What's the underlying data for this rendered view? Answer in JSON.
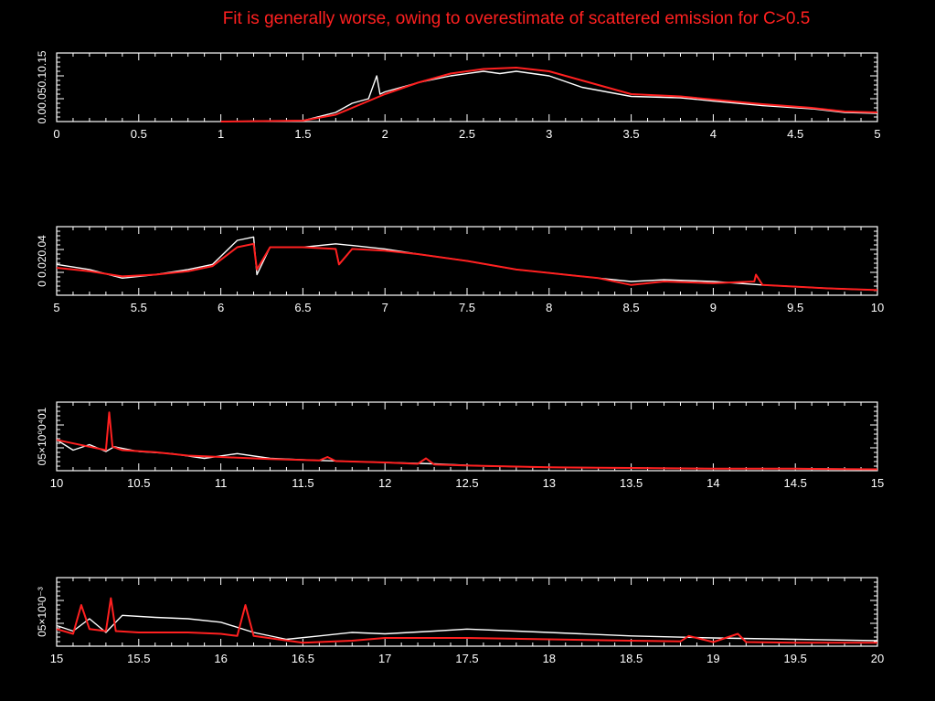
{
  "title": "Fit is generally worse, owing to overestimate of scattered emission for C>0.5",
  "colors": {
    "background": "#000000",
    "axes": "#ffffff",
    "data": "#ffffff",
    "model": "#ff2020",
    "title": "#ff2020"
  },
  "chart_data": [
    {
      "type": "line",
      "xlim": [
        0,
        5
      ],
      "ylim": [
        0,
        0.15
      ],
      "xticks": [
        "0",
        "0.5",
        "1",
        "1.5",
        "2",
        "2.5",
        "3",
        "3.5",
        "4",
        "4.5",
        "5"
      ],
      "yticks_label": "0.00.050.10.15",
      "series": [
        {
          "role": "data",
          "color": "#ffffff",
          "x": [
            1.0,
            1.5,
            1.7,
            1.8,
            1.9,
            1.95,
            1.97,
            2.0,
            2.2,
            2.4,
            2.6,
            2.7,
            2.8,
            3.0,
            3.2,
            3.5,
            3.8,
            4.0,
            4.3,
            4.6,
            4.8,
            5.0
          ],
          "y": [
            0.0,
            0.002,
            0.02,
            0.04,
            0.05,
            0.1,
            0.06,
            0.065,
            0.085,
            0.1,
            0.11,
            0.105,
            0.11,
            0.1,
            0.075,
            0.055,
            0.052,
            0.045,
            0.035,
            0.028,
            0.02,
            0.018
          ]
        },
        {
          "role": "model",
          "color": "#ff2020",
          "x": [
            1.0,
            1.5,
            1.7,
            1.8,
            2.0,
            2.2,
            2.4,
            2.6,
            2.8,
            3.0,
            3.2,
            3.5,
            3.8,
            4.0,
            4.3,
            4.6,
            4.8,
            5.0
          ],
          "y": [
            0.0,
            0.002,
            0.015,
            0.03,
            0.06,
            0.085,
            0.105,
            0.115,
            0.118,
            0.11,
            0.09,
            0.06,
            0.055,
            0.048,
            0.038,
            0.03,
            0.022,
            0.02
          ]
        }
      ]
    },
    {
      "type": "line",
      "xlim": [
        5,
        10
      ],
      "ylim": [
        0,
        0.04
      ],
      "xticks": [
        "5",
        "5.5",
        "6",
        "6.5",
        "7",
        "7.5",
        "8",
        "8.5",
        "9",
        "9.5",
        "10"
      ],
      "yticks_label": "0 0.020.04",
      "series": [
        {
          "role": "data",
          "color": "#ffffff",
          "x": [
            5.0,
            5.2,
            5.4,
            5.6,
            5.8,
            5.95,
            6.1,
            6.2,
            6.22,
            6.3,
            6.5,
            6.7,
            6.8,
            7.0,
            7.2,
            7.5,
            7.8,
            8.0,
            8.3,
            8.5,
            8.7,
            9.0,
            9.3,
            9.5,
            9.7,
            10.0
          ],
          "y": [
            0.018,
            0.015,
            0.01,
            0.012,
            0.015,
            0.018,
            0.032,
            0.034,
            0.012,
            0.028,
            0.028,
            0.03,
            0.029,
            0.027,
            0.024,
            0.02,
            0.015,
            0.013,
            0.01,
            0.008,
            0.009,
            0.008,
            0.006,
            0.005,
            0.004,
            0.003
          ]
        },
        {
          "role": "model",
          "color": "#ff2020",
          "x": [
            5.0,
            5.2,
            5.4,
            5.6,
            5.8,
            5.95,
            6.1,
            6.2,
            6.22,
            6.3,
            6.5,
            6.7,
            6.72,
            6.8,
            7.0,
            7.2,
            7.5,
            7.8,
            8.0,
            8.3,
            8.5,
            8.7,
            9.0,
            9.25,
            9.26,
            9.3,
            9.5,
            9.7,
            10.0
          ],
          "y": [
            0.016,
            0.014,
            0.011,
            0.012,
            0.014,
            0.017,
            0.028,
            0.03,
            0.015,
            0.028,
            0.028,
            0.027,
            0.018,
            0.027,
            0.026,
            0.024,
            0.02,
            0.015,
            0.013,
            0.01,
            0.006,
            0.008,
            0.007,
            0.008,
            0.012,
            0.006,
            0.005,
            0.004,
            0.003
          ]
        }
      ]
    },
    {
      "type": "line",
      "xlim": [
        10,
        15
      ],
      "ylim": [
        0,
        0.001
      ],
      "xticks": [
        "10",
        "10.5",
        "11",
        "11.5",
        "12",
        "12.5",
        "13",
        "13.5",
        "14",
        "14.5",
        "15"
      ],
      "yticks_label": "05×10⁰0⁴01",
      "series": [
        {
          "role": "data",
          "color": "#ffffff",
          "x": [
            10.0,
            10.1,
            10.2,
            10.3,
            10.35,
            10.5,
            10.7,
            10.9,
            11.1,
            11.3,
            11.6,
            12.0,
            12.3,
            12.6,
            13.0,
            13.5,
            14.0,
            14.5,
            15.0
          ],
          "y": [
            0.00045,
            0.0003,
            0.00038,
            0.00028,
            0.00035,
            0.00028,
            0.00025,
            0.00018,
            0.00025,
            0.00018,
            0.00015,
            0.00012,
            0.0001,
            7e-05,
            5e-05,
            4e-05,
            3e-05,
            3e-05,
            2e-05
          ]
        },
        {
          "role": "model",
          "color": "#ff2020",
          "x": [
            10.0,
            10.2,
            10.3,
            10.32,
            10.34,
            10.4,
            10.6,
            10.8,
            11.0,
            11.3,
            11.6,
            11.65,
            11.7,
            12.0,
            12.2,
            12.25,
            12.3,
            12.6,
            13.0,
            13.5,
            14.0,
            14.5,
            15.0
          ],
          "y": [
            0.00045,
            0.00035,
            0.0003,
            0.00085,
            0.00035,
            0.0003,
            0.00027,
            0.00022,
            0.0002,
            0.00017,
            0.00015,
            0.0002,
            0.00014,
            0.00012,
            0.0001,
            0.00018,
            9e-05,
            7e-05,
            5e-05,
            4e-05,
            3e-05,
            3e-05,
            2e-05
          ]
        }
      ]
    },
    {
      "type": "line",
      "xlim": [
        15,
        20
      ],
      "ylim": [
        0,
        0.001
      ],
      "xticks": [
        "15",
        "15.5",
        "16",
        "16.5",
        "17",
        "17.5",
        "18",
        "18.5",
        "19",
        "19.5",
        "20"
      ],
      "yticks_label": "05×10¹0⁻³",
      "series": [
        {
          "role": "data",
          "color": "#ffffff",
          "x": [
            15.0,
            15.1,
            15.2,
            15.3,
            15.4,
            15.6,
            15.8,
            16.0,
            16.2,
            16.4,
            16.6,
            16.8,
            17.0,
            17.3,
            17.5,
            17.8,
            18.0,
            18.5,
            19.0,
            19.5,
            20.0
          ],
          "y": [
            0.0003,
            0.00022,
            0.0004,
            0.0002,
            0.00045,
            0.00042,
            0.0004,
            0.00035,
            0.0002,
            0.0001,
            0.00015,
            0.0002,
            0.00018,
            0.00022,
            0.00025,
            0.00022,
            0.0002,
            0.00015,
            0.00012,
            0.0001,
            8e-05
          ]
        },
        {
          "role": "model",
          "color": "#ff2020",
          "x": [
            15.0,
            15.1,
            15.15,
            15.2,
            15.3,
            15.33,
            15.36,
            15.5,
            15.8,
            16.0,
            16.1,
            16.15,
            16.2,
            16.5,
            16.8,
            17.0,
            17.5,
            18.0,
            18.5,
            18.8,
            18.85,
            19.0,
            19.15,
            19.2,
            19.5,
            20.0
          ],
          "y": [
            0.00025,
            0.00018,
            0.0006,
            0.00025,
            0.00022,
            0.0007,
            0.00022,
            0.0002,
            0.0002,
            0.00018,
            0.00015,
            0.0006,
            0.00015,
            5e-05,
            8e-05,
            0.00012,
            0.00012,
            0.0001,
            8e-05,
            7e-05,
            0.00015,
            6e-05,
            0.00018,
            6e-05,
            5e-05,
            5e-05
          ]
        }
      ]
    }
  ]
}
